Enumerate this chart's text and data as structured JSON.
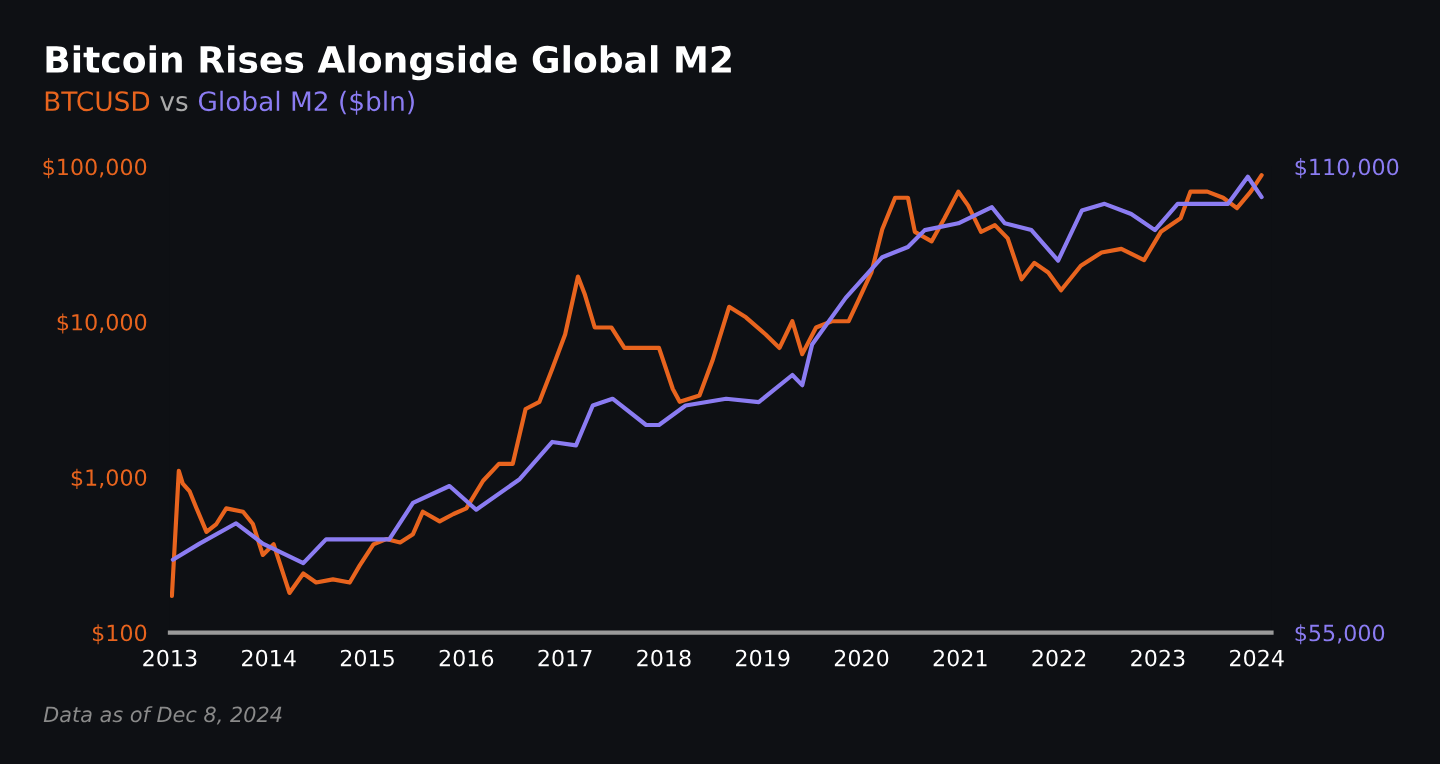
{
  "chart_data": {
    "type": "line",
    "title": "Bitcoin Rises Alongside Global M2",
    "subtitle": "vs",
    "legend": "top left",
    "grid": false,
    "log": "y",
    "line_style": "solid",
    "marker": "none",
    "xlim": [
      2013,
      2024.15
    ],
    "xticks": [
      {
        "value": 2013,
        "label": "2013"
      },
      {
        "value": 2014,
        "label": "2014"
      },
      {
        "value": 2015,
        "label": "2015"
      },
      {
        "value": 2016,
        "label": "2016"
      },
      {
        "value": 2017,
        "label": "2017"
      },
      {
        "value": 2018,
        "label": "2018"
      },
      {
        "value": 2019,
        "label": "2019"
      },
      {
        "value": 2020,
        "label": "2020"
      },
      {
        "value": 2021,
        "label": "2021"
      },
      {
        "value": 2022,
        "label": "2022"
      },
      {
        "value": 2023,
        "label": "2023"
      },
      {
        "value": 2024,
        "label": "2024"
      }
    ],
    "ylim": [
      100,
      100000
    ],
    "yticks": [
      {
        "value": 100,
        "label": "$100"
      },
      {
        "value": 1000,
        "label": "$1,000"
      },
      {
        "value": 10000,
        "label": "$10,000"
      },
      {
        "value": 100000,
        "label": "$100,000"
      }
    ],
    "y2lim": [
      55000,
      110000
    ],
    "y2ticks": [
      {
        "value": 55000,
        "label": "$55,000"
      },
      {
        "value": 110000,
        "label": "$110,000"
      }
    ],
    "annotations": [
      "Data as of Dec 8, 2024"
    ],
    "series": [
      {
        "name": "BTCUSD",
        "color": "#e8641e",
        "x": [
          2013.02,
          2013.09,
          2013.13,
          2013.2,
          2013.27,
          2013.37,
          2013.47,
          2013.57,
          2013.74,
          2013.84,
          2013.94,
          2014.05,
          2014.21,
          2014.35,
          2014.48,
          2014.65,
          2014.82,
          2014.92,
          2015.06,
          2015.19,
          2015.33,
          2015.46,
          2015.56,
          2015.73,
          2015.87,
          2016.0,
          2016.17,
          2016.33,
          2016.47,
          2016.6,
          2016.74,
          2016.87,
          2017.0,
          2017.13,
          2017.2,
          2017.3,
          2017.47,
          2017.6,
          2017.8,
          2017.95,
          2018.09,
          2018.16,
          2018.36,
          2018.49,
          2018.66,
          2018.83,
          2019.03,
          2019.17,
          2019.3,
          2019.4,
          2019.54,
          2019.7,
          2019.87,
          2019.97,
          2020.1,
          2020.21,
          2020.34,
          2020.47,
          2020.54,
          2020.71,
          2020.84,
          2020.98,
          2021.08,
          2021.21,
          2021.35,
          2021.48,
          2021.62,
          2021.75,
          2021.89,
          2022.02,
          2022.22,
          2022.43,
          2022.63,
          2022.86,
          2023.03,
          2023.23,
          2023.33,
          2023.5,
          2023.66,
          2023.8,
          2023.94,
          2024.05
        ],
        "values": [
          172,
          1100,
          910,
          810,
          630,
          445,
          500,
          630,
          600,
          500,
          316,
          370,
          180,
          240,
          210,
          220,
          210,
          270,
          370,
          400,
          380,
          430,
          600,
          520,
          580,
          630,
          950,
          1220,
          1220,
          2750,
          3060,
          5000,
          8300,
          19600,
          15000,
          9200,
          9200,
          6800,
          6800,
          6800,
          3700,
          3060,
          3360,
          5600,
          12500,
          10700,
          8300,
          6800,
          10100,
          6200,
          9200,
          10100,
          10100,
          13800,
          20800,
          39500,
          63000,
          63000,
          38000,
          33000,
          46500,
          69000,
          56000,
          38000,
          42000,
          34500,
          18800,
          24000,
          20800,
          16000,
          23000,
          28000,
          29500,
          25000,
          38000,
          46500,
          69000,
          69000,
          63000,
          54000,
          69000,
          88000
        ]
      },
      {
        "name": "Global M2 ($bln)",
        "color": "#8b7cf2",
        "axis": "y2",
        "x": [
          2013.03,
          2013.3,
          2013.67,
          2013.94,
          2014.35,
          2014.58,
          2014.99,
          2015.22,
          2015.46,
          2015.83,
          2016.1,
          2016.54,
          2016.87,
          2017.11,
          2017.28,
          2017.48,
          2017.82,
          2017.95,
          2018.22,
          2018.63,
          2018.96,
          2019.3,
          2019.4,
          2019.5,
          2019.84,
          2020.21,
          2020.47,
          2020.64,
          2020.98,
          2021.32,
          2021.45,
          2021.72,
          2021.99,
          2022.23,
          2022.46,
          2022.73,
          2022.97,
          2023.2,
          2023.54,
          2023.71,
          2023.91,
          2024.05
        ],
        "values": [
          63600,
          65500,
          67900,
          65500,
          63200,
          66000,
          66000,
          66000,
          70300,
          72300,
          69500,
          73100,
          77500,
          77100,
          81800,
          82600,
          79500,
          79500,
          81800,
          82600,
          82200,
          85400,
          84200,
          89000,
          94500,
          99300,
          100500,
          102500,
          103300,
          105200,
          103300,
          102500,
          98900,
          104800,
          105600,
          104400,
          102500,
          105600,
          105600,
          105600,
          108800,
          106400
        ]
      }
    ]
  }
}
